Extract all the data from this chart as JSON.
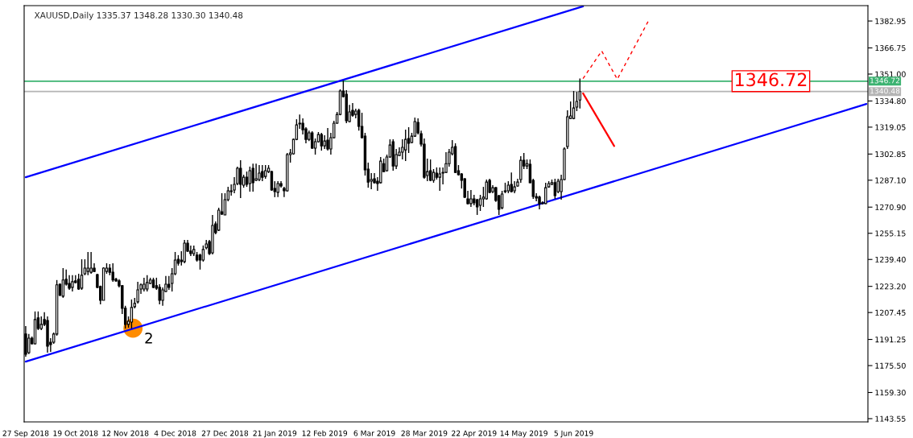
{
  "chart_data": {
    "type": "candlestick",
    "title": "XAUUSD,Daily 1335.37 1348.28 1330.30 1340.48",
    "categories": [
      "27 Sep 2018",
      null,
      null,
      null,
      null,
      null,
      null,
      null,
      null,
      null,
      null,
      null,
      null,
      null,
      null,
      null,
      "19 Oct 2018",
      null,
      null,
      null,
      null,
      null,
      null,
      null,
      null,
      null,
      null,
      null,
      null,
      null,
      null,
      null,
      "12 Nov 2018",
      null,
      null,
      null,
      null,
      null,
      null,
      null,
      null,
      null,
      null,
      null,
      null,
      null,
      null,
      null,
      "4 Dec 2018",
      null,
      null,
      null,
      null,
      null,
      null,
      null,
      null,
      null,
      null,
      null,
      null,
      null,
      null,
      null,
      "27 Dec 2018",
      null,
      null,
      null,
      null,
      null,
      null,
      null,
      null,
      null,
      null,
      null,
      null,
      null,
      null,
      null,
      "21 Jan 2019",
      null,
      null,
      null,
      null,
      null,
      null,
      null,
      null,
      null,
      null,
      null,
      null,
      null,
      null,
      null,
      "12 Feb 2019",
      null,
      null,
      null,
      null,
      null,
      null,
      null,
      null,
      null,
      null,
      null,
      null,
      null,
      null,
      null,
      "6 Mar 2019",
      null,
      null,
      null,
      null,
      null,
      null,
      null,
      null,
      null,
      null,
      null,
      null,
      null,
      null,
      null,
      "28 Mar 2019",
      null,
      null,
      null,
      null,
      null,
      null,
      null,
      null,
      null,
      null,
      null,
      null,
      null,
      null,
      null,
      "22 Apr 2019",
      null,
      null,
      null,
      null,
      null,
      null,
      null,
      null,
      null,
      null,
      null,
      null,
      null,
      null,
      null,
      "14 May 2019",
      null,
      null,
      null,
      null,
      null,
      null,
      null,
      null,
      null,
      null,
      null,
      null,
      null,
      null,
      null,
      "5 Jun 2019",
      null,
      null,
      null,
      null,
      null,
      null,
      null,
      null,
      null,
      null,
      null,
      null,
      null,
      null,
      null,
      null,
      null,
      null,
      null,
      null,
      null,
      null,
      null,
      null,
      null,
      null,
      null,
      null,
      null,
      null,
      null,
      null,
      null,
      null,
      null,
      null,
      null,
      null,
      null,
      null,
      null,
      null,
      null,
      null,
      null,
      null,
      null,
      null,
      null,
      null,
      null,
      null,
      null,
      null,
      null,
      null,
      null,
      null,
      null,
      null,
      null,
      null,
      null,
      null,
      null,
      null,
      null,
      null,
      null,
      null,
      null,
      null,
      null,
      null,
      null,
      null,
      null,
      null,
      null,
      null,
      null,
      null,
      null,
      null,
      null,
      null,
      null,
      null,
      null,
      null,
      null,
      null,
      null,
      null
    ],
    "ohlc": [
      [
        1194.5,
        1199.3,
        1180.9,
        1182.4
      ],
      [
        1183.3,
        1194.5,
        1182.4,
        1192.0
      ],
      [
        1192.0,
        1193.0,
        1188.2,
        1188.6
      ],
      [
        1188.6,
        1208.1,
        1188.2,
        1203.2
      ],
      [
        1204.2,
        1208.1,
        1196.9,
        1197.8
      ],
      [
        1197.8,
        1205.1,
        1196.9,
        1200.3
      ],
      [
        1203.2,
        1207.6,
        1199.3,
        1200.3
      ],
      [
        1202.7,
        1205.1,
        1183.3,
        1187.2
      ],
      [
        1189.6,
        1192.0,
        1183.8,
        1188.2
      ],
      [
        1189.6,
        1195.4,
        1188.6,
        1194.5
      ],
      [
        1194.5,
        1227.0,
        1193.5,
        1224.1
      ],
      [
        1224.5,
        1225.0,
        1217.3,
        1217.8
      ],
      [
        1217.3,
        1234.2,
        1216.3,
        1227.0
      ],
      [
        1227.5,
        1233.3,
        1223.6,
        1224.5
      ],
      [
        1225.0,
        1229.9,
        1221.1,
        1222.1
      ],
      [
        1222.6,
        1229.9,
        1220.1,
        1226.0
      ],
      [
        1226.5,
        1229.9,
        1225.0,
        1225.5
      ],
      [
        1227.5,
        1230.8,
        1221.1,
        1221.6
      ],
      [
        1222.1,
        1239.5,
        1221.1,
        1229.9
      ],
      [
        1230.8,
        1239.5,
        1229.9,
        1234.2
      ],
      [
        1232.2,
        1243.9,
        1229.9,
        1234.2
      ],
      [
        1231.7,
        1243.9,
        1230.8,
        1234.2
      ],
      [
        1234.2,
        1237.1,
        1231.7,
        1232.2
      ],
      [
        1230.3,
        1230.8,
        1222.1,
        1222.6
      ],
      [
        1223.1,
        1223.6,
        1212.4,
        1214.8
      ],
      [
        1214.8,
        1234.7,
        1214.8,
        1234.2
      ],
      [
        1232.2,
        1237.1,
        1230.8,
        1234.2
      ],
      [
        1234.2,
        1236.6,
        1229.9,
        1231.7
      ],
      [
        1231.7,
        1237.1,
        1226.0,
        1227.0
      ],
      [
        1227.5,
        1228.4,
        1226.0,
        1226.5
      ],
      [
        1226.5,
        1227.5,
        1222.6,
        1223.6
      ],
      [
        1223.6,
        1224.0,
        1206.6,
        1210.0
      ],
      [
        1210.0,
        1211.5,
        1197.8,
        1200.3
      ],
      [
        1200.3,
        1205.1,
        1198.3,
        1202.2
      ],
      [
        1201.7,
        1215.3,
        1197.8,
        1210.5
      ],
      [
        1211.0,
        1216.3,
        1210.0,
        1212.9
      ],
      [
        1213.9,
        1226.0,
        1212.9,
        1221.1
      ],
      [
        1221.6,
        1225.0,
        1218.7,
        1224.1
      ],
      [
        1221.6,
        1228.4,
        1220.1,
        1224.5
      ],
      [
        1221.6,
        1229.9,
        1220.1,
        1225.5
      ],
      [
        1225.0,
        1228.4,
        1224.5,
        1227.0
      ],
      [
        1227.0,
        1228.4,
        1222.1,
        1222.6
      ],
      [
        1223.6,
        1228.4,
        1221.1,
        1222.1
      ],
      [
        1222.6,
        1224.5,
        1212.4,
        1214.8
      ],
      [
        1214.8,
        1222.6,
        1211.5,
        1221.1
      ],
      [
        1220.1,
        1229.4,
        1219.6,
        1224.5
      ],
      [
        1224.5,
        1229.4,
        1221.1,
        1222.6
      ],
      [
        1225.0,
        1234.2,
        1220.1,
        1230.8
      ],
      [
        1230.8,
        1243.9,
        1229.9,
        1239.0
      ],
      [
        1239.5,
        1242.0,
        1235.7,
        1237.1
      ],
      [
        1239.0,
        1244.4,
        1235.7,
        1238.1
      ],
      [
        1238.1,
        1251.1,
        1237.1,
        1249.2
      ],
      [
        1249.2,
        1251.1,
        1243.9,
        1244.4
      ],
      [
        1244.4,
        1247.8,
        1241.5,
        1242.9
      ],
      [
        1242.9,
        1247.8,
        1241.5,
        1245.4
      ],
      [
        1242.0,
        1243.9,
        1238.1,
        1239.0
      ],
      [
        1242.0,
        1242.9,
        1233.3,
        1239.0
      ],
      [
        1239.0,
        1247.8,
        1238.1,
        1245.4
      ],
      [
        1246.4,
        1251.1,
        1245.4,
        1248.7
      ],
      [
        1250.2,
        1251.1,
        1242.0,
        1242.9
      ],
      [
        1243.4,
        1266.2,
        1242.4,
        1259.9
      ],
      [
        1260.8,
        1262.3,
        1254.5,
        1255.5
      ],
      [
        1257.0,
        1270.5,
        1256.5,
        1269.1
      ],
      [
        1268.1,
        1279.3,
        1266.2,
        1266.7
      ],
      [
        1266.2,
        1279.3,
        1266.2,
        1275.4
      ],
      [
        1275.4,
        1283.1,
        1274.4,
        1280.7
      ],
      [
        1280.2,
        1284.6,
        1277.8,
        1280.7
      ],
      [
        1281.2,
        1288.9,
        1279.3,
        1284.6
      ],
      [
        1285.1,
        1295.3,
        1284.1,
        1294.3
      ],
      [
        1294.3,
        1299.1,
        1276.4,
        1284.6
      ],
      [
        1284.1,
        1290.4,
        1282.6,
        1288.9
      ],
      [
        1288.9,
        1292.3,
        1283.1,
        1284.6
      ],
      [
        1285.1,
        1295.3,
        1280.2,
        1292.8
      ],
      [
        1294.3,
        1297.1,
        1280.2,
        1285.6
      ],
      [
        1287.0,
        1297.1,
        1286.5,
        1288.0
      ],
      [
        1287.5,
        1296.2,
        1286.5,
        1291.4
      ],
      [
        1292.3,
        1296.2,
        1286.5,
        1288.9
      ],
      [
        1289.4,
        1296.2,
        1288.0,
        1292.8
      ],
      [
        1292.3,
        1296.2,
        1291.4,
        1294.3
      ],
      [
        1292.3,
        1292.8,
        1280.7,
        1281.2
      ],
      [
        1282.1,
        1286.5,
        1276.9,
        1280.2
      ],
      [
        1279.8,
        1286.5,
        1276.9,
        1285.1
      ],
      [
        1285.1,
        1286.5,
        1282.6,
        1283.6
      ],
      [
        1282.1,
        1283.1,
        1276.9,
        1280.7
      ],
      [
        1280.7,
        1303.5,
        1280.2,
        1302.5
      ],
      [
        1302.5,
        1305.9,
        1297.7,
        1303.5
      ],
      [
        1303.0,
        1312.2,
        1302.5,
        1311.7
      ],
      [
        1311.7,
        1323.8,
        1311.2,
        1320.4
      ],
      [
        1321.0,
        1326.7,
        1318.0,
        1321.4
      ],
      [
        1321.4,
        1324.3,
        1314.6,
        1317.5
      ],
      [
        1318.0,
        1319.0,
        1309.3,
        1311.7
      ],
      [
        1311.7,
        1317.0,
        1310.7,
        1315.6
      ],
      [
        1315.6,
        1316.6,
        1305.9,
        1306.4
      ],
      [
        1306.4,
        1312.2,
        1302.5,
        1310.3
      ],
      [
        1310.3,
        1316.1,
        1309.8,
        1314.6
      ],
      [
        1314.6,
        1315.6,
        1304.9,
        1307.8
      ],
      [
        1307.8,
        1314.1,
        1305.9,
        1310.7
      ],
      [
        1311.2,
        1318.5,
        1304.9,
        1305.9
      ],
      [
        1305.9,
        1315.6,
        1302.5,
        1312.7
      ],
      [
        1312.7,
        1322.9,
        1312.2,
        1321.4
      ],
      [
        1321.4,
        1328.2,
        1321.0,
        1326.7
      ],
      [
        1326.7,
        1341.8,
        1326.2,
        1340.8
      ],
      [
        1340.8,
        1347.1,
        1336.9,
        1337.4
      ],
      [
        1338.9,
        1341.3,
        1321.4,
        1322.9
      ],
      [
        1322.4,
        1332.5,
        1321.9,
        1328.2
      ],
      [
        1329.2,
        1333.5,
        1325.3,
        1326.2
      ],
      [
        1326.7,
        1330.1,
        1324.3,
        1328.7
      ],
      [
        1329.2,
        1330.1,
        1317.0,
        1319.5
      ],
      [
        1319.5,
        1327.7,
        1312.2,
        1312.7
      ],
      [
        1313.6,
        1315.6,
        1289.9,
        1293.3
      ],
      [
        1293.8,
        1297.7,
        1282.6,
        1286.0
      ],
      [
        1286.5,
        1291.4,
        1281.7,
        1287.5
      ],
      [
        1288.0,
        1291.4,
        1285.1,
        1285.6
      ],
      [
        1286.5,
        1288.9,
        1280.7,
        1285.1
      ],
      [
        1285.6,
        1301.1,
        1285.1,
        1298.6
      ],
      [
        1297.1,
        1300.1,
        1292.0,
        1292.3
      ],
      [
        1292.8,
        1302.5,
        1292.3,
        1301.1
      ],
      [
        1301.1,
        1311.7,
        1300.6,
        1308.3
      ],
      [
        1310.3,
        1311.7,
        1292.8,
        1295.7
      ],
      [
        1295.7,
        1305.9,
        1293.8,
        1302.5
      ],
      [
        1302.0,
        1306.9,
        1301.8,
        1304.0
      ],
      [
        1304.0,
        1311.7,
        1299.6,
        1306.9
      ],
      [
        1305.4,
        1317.5,
        1298.6,
        1311.7
      ],
      [
        1312.2,
        1319.0,
        1303.5,
        1309.3
      ],
      [
        1309.8,
        1315.6,
        1309.3,
        1313.6
      ],
      [
        1313.6,
        1324.8,
        1313.2,
        1322.4
      ],
      [
        1321.9,
        1324.3,
        1314.6,
        1315.6
      ],
      [
        1315.1,
        1317.0,
        1307.4,
        1308.8
      ],
      [
        1308.8,
        1312.2,
        1288.0,
        1288.9
      ],
      [
        1289.9,
        1300.1,
        1286.5,
        1292.3
      ],
      [
        1292.8,
        1299.6,
        1286.5,
        1287.0
      ],
      [
        1287.0,
        1293.8,
        1285.6,
        1291.8
      ],
      [
        1291.4,
        1294.8,
        1287.5,
        1288.9
      ],
      [
        1288.9,
        1294.8,
        1280.7,
        1290.9
      ],
      [
        1291.4,
        1294.8,
        1284.6,
        1291.8
      ],
      [
        1291.8,
        1304.0,
        1291.4,
        1297.1
      ],
      [
        1297.1,
        1305.9,
        1295.3,
        1304.0
      ],
      [
        1303.0,
        1311.2,
        1302.0,
        1306.9
      ],
      [
        1307.4,
        1309.3,
        1291.4,
        1291.8
      ],
      [
        1292.8,
        1296.2,
        1289.9,
        1290.4
      ],
      [
        1290.9,
        1291.4,
        1282.1,
        1287.0
      ],
      [
        1288.0,
        1288.3,
        1276.4,
        1276.9
      ],
      [
        1275.9,
        1280.7,
        1272.5,
        1273.0
      ],
      [
        1273.0,
        1281.2,
        1271.0,
        1275.9
      ],
      [
        1275.9,
        1278.3,
        1272.0,
        1273.5
      ],
      [
        1275.4,
        1275.9,
        1266.2,
        1271.0
      ],
      [
        1272.0,
        1278.3,
        1268.6,
        1275.9
      ],
      [
        1275.9,
        1283.1,
        1271.0,
        1276.9
      ],
      [
        1275.9,
        1287.5,
        1275.4,
        1286.0
      ],
      [
        1287.0,
        1288.0,
        1279.3,
        1279.8
      ],
      [
        1280.2,
        1284.1,
        1279.3,
        1282.6
      ],
      [
        1282.6,
        1283.1,
        1274.0,
        1274.9
      ],
      [
        1277.8,
        1278.3,
        1266.2,
        1269.6
      ],
      [
        1270.5,
        1280.7,
        1269.6,
        1278.8
      ],
      [
        1280.2,
        1285.6,
        1279.3,
        1280.7
      ],
      [
        1280.7,
        1286.5,
        1279.3,
        1284.1
      ],
      [
        1284.6,
        1291.8,
        1279.8,
        1280.2
      ],
      [
        1280.7,
        1286.5,
        1279.3,
        1283.1
      ],
      [
        1283.6,
        1288.0,
        1283.1,
        1286.0
      ],
      [
        1287.5,
        1301.6,
        1285.6,
        1299.1
      ],
      [
        1299.1,
        1303.5,
        1293.8,
        1295.7
      ],
      [
        1295.7,
        1299.6,
        1293.8,
        1297.1
      ],
      [
        1296.7,
        1299.6,
        1285.3,
        1285.6
      ],
      [
        1287.0,
        1288.0,
        1275.9,
        1277.3
      ],
      [
        1277.3,
        1279.3,
        1274.4,
        1276.4
      ],
      [
        1276.9,
        1277.8,
        1269.6,
        1273.0
      ],
      [
        1273.0,
        1274.4,
        1272.5,
        1273.5
      ],
      [
        1273.0,
        1285.6,
        1272.7,
        1282.6
      ],
      [
        1283.1,
        1286.5,
        1282.6,
        1285.1
      ],
      [
        1284.6,
        1287.5,
        1284.1,
        1285.6
      ],
      [
        1285.6,
        1288.0,
        1275.9,
        1277.8
      ],
      [
        1280.2,
        1288.0,
        1279.3,
        1286.5
      ],
      [
        1280.2,
        1290.4,
        1275.4,
        1287.5
      ],
      [
        1287.5,
        1306.9,
        1287.0,
        1305.9
      ],
      [
        1307.4,
        1329.2,
        1305.9,
        1325.3
      ],
      [
        1324.3,
        1334.5,
        1324.0,
        1325.8
      ],
      [
        1324.3,
        1340.8,
        1323.8,
        1330.6
      ],
      [
        1331.1,
        1340.3,
        1328.7,
        1334.5
      ],
      [
        1335.37,
        1348.28,
        1330.3,
        1340.48
      ],
      null,
      null,
      null,
      null,
      null,
      null,
      null,
      null,
      null,
      null,
      null,
      null,
      null,
      null,
      null,
      null,
      null,
      null,
      null,
      null,
      null,
      null,
      null,
      null,
      null,
      null,
      null,
      null,
      null,
      null,
      null,
      null,
      null,
      null,
      null,
      null,
      null,
      null,
      null,
      null,
      null,
      null,
      null,
      null,
      null,
      null,
      null,
      null,
      null,
      null,
      null,
      null,
      null,
      null,
      null,
      null,
      null,
      null,
      null,
      null,
      null,
      null,
      null,
      null,
      null,
      null,
      null,
      null,
      null,
      null,
      null,
      null,
      null,
      null,
      null,
      null,
      null,
      null,
      null,
      null,
      null,
      null,
      null,
      null,
      null,
      null,
      null,
      null,
      null,
      null,
      null,
      null
    ],
    "series": [
      {
        "type": "line",
        "values": [
          1288.9,
          null,
          null,
          null,
          null,
          null,
          null,
          null,
          null,
          null,
          null,
          null,
          null,
          null,
          null,
          null,
          null,
          null,
          null,
          null,
          null,
          null,
          null,
          null,
          null,
          null,
          null,
          null,
          null,
          null,
          null,
          null,
          null,
          null,
          null,
          null,
          null,
          null,
          null,
          null,
          null,
          null,
          null,
          null,
          null,
          null,
          null,
          null,
          null,
          null,
          null,
          null,
          null,
          null,
          null,
          null,
          null,
          null,
          null,
          null,
          null,
          null,
          null,
          null,
          null,
          null,
          null,
          null,
          null,
          null,
          null,
          null,
          null,
          null,
          null,
          null,
          null,
          null,
          null,
          null,
          null,
          null,
          null,
          null,
          null,
          null,
          null,
          null,
          null,
          null,
          null,
          null,
          null,
          null,
          null,
          null,
          null,
          null,
          null,
          null,
          null,
          null,
          null,
          null,
          null,
          null,
          null,
          null,
          null,
          null,
          null,
          null,
          null,
          null,
          null,
          null,
          null,
          null,
          null,
          null,
          null,
          null,
          null,
          null,
          null,
          null,
          null,
          null,
          null,
          null,
          null,
          null,
          null,
          null,
          null,
          null,
          null,
          null,
          null,
          null,
          null,
          null,
          null,
          null,
          null,
          null,
          null,
          null,
          null,
          null,
          null,
          null,
          null,
          null,
          null,
          null,
          null,
          null,
          null,
          null,
          null,
          null,
          null,
          null,
          null,
          null,
          null,
          null,
          null,
          null,
          null,
          null,
          null,
          null,
          null,
          null,
          null,
          null,
          null,
          1391.8,
          null,
          null,
          null,
          null,
          null,
          null,
          null,
          null,
          null,
          null,
          null,
          null,
          null,
          null,
          null,
          null,
          null,
          null,
          null,
          null,
          null,
          null,
          null,
          null,
          null,
          null,
          null,
          null,
          null,
          null,
          null,
          null,
          null,
          null,
          null,
          null,
          null,
          null,
          null,
          null,
          null,
          null,
          null,
          null,
          null,
          null,
          null,
          null,
          null,
          null,
          null,
          null,
          null,
          null,
          null,
          null,
          null,
          null,
          null,
          null,
          null,
          null,
          null,
          null,
          null,
          null,
          null,
          null,
          null,
          null,
          null,
          null,
          null,
          null,
          null,
          null,
          null,
          null,
          null,
          null,
          null,
          null,
          null,
          null,
          null,
          null,
          null,
          null,
          null,
          null,
          null
        ],
        "color": "#0000ff",
        "line_style": "solid"
      },
      {
        "type": "line",
        "values": [
          1177.9,
          null,
          null,
          null,
          null,
          null,
          null,
          null,
          null,
          null,
          null,
          null,
          null,
          null,
          null,
          null,
          null,
          null,
          null,
          null,
          null,
          null,
          null,
          null,
          null,
          null,
          null,
          null,
          null,
          null,
          null,
          null,
          null,
          null,
          null,
          null,
          null,
          null,
          null,
          null,
          null,
          null,
          null,
          null,
          null,
          null,
          null,
          null,
          null,
          null,
          null,
          null,
          null,
          null,
          null,
          null,
          null,
          null,
          null,
          null,
          null,
          null,
          null,
          null,
          null,
          null,
          null,
          null,
          null,
          null,
          null,
          null,
          null,
          null,
          null,
          null,
          null,
          null,
          null,
          null,
          null,
          null,
          null,
          null,
          null,
          null,
          null,
          null,
          null,
          null,
          null,
          null,
          null,
          null,
          null,
          null,
          null,
          null,
          null,
          null,
          null,
          null,
          null,
          null,
          null,
          null,
          null,
          null,
          null,
          null,
          null,
          null,
          null,
          null,
          null,
          null,
          null,
          null,
          null,
          null,
          null,
          null,
          null,
          null,
          null,
          null,
          null,
          null,
          null,
          null,
          null,
          null,
          null,
          null,
          null,
          null,
          null,
          null,
          null,
          null,
          null,
          null,
          null,
          null,
          null,
          null,
          null,
          null,
          null,
          null,
          null,
          null,
          null,
          null,
          null,
          null,
          null,
          null,
          null,
          null,
          null,
          null,
          null,
          null,
          null,
          null,
          null,
          null,
          null,
          null,
          null,
          null,
          null,
          null,
          null,
          null,
          null,
          null,
          null,
          null,
          null,
          null,
          null,
          null,
          null,
          null,
          null,
          null,
          null,
          null,
          null,
          null,
          null,
          null,
          null,
          null,
          null,
          null,
          null,
          null,
          null,
          null,
          null,
          null,
          null,
          null,
          null,
          null,
          null,
          null,
          null,
          null,
          null,
          null,
          null,
          null,
          null,
          null,
          null,
          null,
          null,
          null,
          null,
          null,
          null,
          null,
          null,
          null,
          null,
          null,
          null,
          null,
          null,
          null,
          null,
          null,
          null,
          null,
          null,
          null,
          null,
          null,
          null,
          null,
          null,
          null,
          null,
          null,
          null,
          null,
          null,
          null,
          null,
          null,
          null,
          null,
          null,
          null,
          null,
          null,
          null,
          null,
          null,
          null,
          null,
          null,
          null,
          null,
          null,
          null,
          1333.0
        ],
        "color": "#0000ff",
        "line_style": "solid"
      },
      {
        "type": "line",
        "values": [
          null,
          null,
          null,
          null,
          null,
          null,
          null,
          null,
          null,
          null,
          null,
          null,
          null,
          null,
          null,
          null,
          null,
          null,
          null,
          null,
          null,
          null,
          null,
          null,
          null,
          null,
          null,
          null,
          null,
          null,
          null,
          null,
          null,
          null,
          null,
          null,
          null,
          null,
          null,
          null,
          null,
          null,
          null,
          null,
          null,
          null,
          null,
          null,
          null,
          null,
          null,
          null,
          null,
          null,
          null,
          null,
          null,
          null,
          null,
          null,
          null,
          null,
          null,
          null,
          null,
          null,
          null,
          null,
          null,
          null,
          null,
          null,
          null,
          null,
          null,
          null,
          null,
          null,
          null,
          null,
          null,
          null,
          null,
          null,
          null,
          null,
          null,
          null,
          null,
          null,
          null,
          null,
          null,
          null,
          null,
          null,
          null,
          null,
          null,
          null,
          null,
          null,
          null,
          null,
          null,
          null,
          null,
          null,
          null,
          null,
          null,
          null,
          null,
          null,
          null,
          null,
          null,
          null,
          null,
          null,
          null,
          null,
          null,
          null,
          null,
          null,
          null,
          null,
          null,
          null,
          null,
          null,
          null,
          null,
          null,
          null,
          null,
          null,
          null,
          null,
          null,
          null,
          null,
          null,
          null,
          null,
          null,
          null,
          null,
          null,
          null,
          null,
          null,
          null,
          null,
          null,
          null,
          null,
          null,
          null,
          null,
          null,
          null,
          null,
          null,
          null,
          null,
          null,
          null,
          null,
          null,
          null,
          null,
          null,
          null,
          null,
          null,
          null,
          null,
          1339.4,
          null,
          null,
          null,
          null,
          null,
          null,
          null,
          null,
          null,
          1307.7,
          null,
          null,
          null,
          null,
          null,
          null,
          null,
          null,
          null,
          null,
          null,
          null,
          null,
          null,
          null,
          null,
          null,
          null,
          null,
          null,
          null,
          null,
          null,
          null,
          null,
          null,
          null,
          null,
          null,
          null,
          null,
          null,
          null,
          null,
          null,
          null,
          null,
          null,
          null,
          null,
          null,
          null,
          null,
          null,
          null,
          null,
          null,
          null,
          null,
          null,
          null,
          null,
          null,
          null,
          null,
          null,
          null,
          null,
          null,
          null,
          null,
          null,
          null,
          null,
          null,
          null,
          null,
          null,
          null,
          null,
          null,
          null,
          null,
          null,
          null,
          null,
          null,
          null,
          null,
          null,
          null
        ],
        "color": "#ff0000",
        "line_style": "solid"
      },
      {
        "type": "line",
        "values": [
          null,
          null,
          null,
          null,
          null,
          null,
          null,
          null,
          null,
          null,
          null,
          null,
          null,
          null,
          null,
          null,
          null,
          null,
          null,
          null,
          null,
          null,
          null,
          null,
          null,
          null,
          null,
          null,
          null,
          null,
          null,
          null,
          null,
          null,
          null,
          null,
          null,
          null,
          null,
          null,
          null,
          null,
          null,
          null,
          null,
          null,
          null,
          null,
          null,
          null,
          null,
          null,
          null,
          null,
          null,
          null,
          null,
          null,
          null,
          null,
          null,
          null,
          null,
          null,
          null,
          null,
          null,
          null,
          null,
          null,
          null,
          null,
          null,
          null,
          null,
          null,
          null,
          null,
          null,
          null,
          null,
          null,
          null,
          null,
          null,
          null,
          null,
          null,
          null,
          null,
          null,
          null,
          null,
          null,
          null,
          null,
          null,
          null,
          null,
          null,
          null,
          null,
          null,
          null,
          null,
          null,
          null,
          null,
          null,
          null,
          null,
          null,
          null,
          null,
          null,
          null,
          null,
          null,
          null,
          null,
          null,
          null,
          null,
          null,
          null,
          null,
          null,
          null,
          null,
          null,
          null,
          null,
          null,
          null,
          null,
          null,
          null,
          null,
          null,
          null,
          null,
          null,
          null,
          null,
          null,
          null,
          null,
          null,
          null,
          null,
          null,
          null,
          null,
          null,
          null,
          null,
          null,
          null,
          null,
          null,
          null,
          null,
          null,
          null,
          null,
          null,
          null,
          null,
          null,
          null,
          null,
          null,
          null,
          null,
          null,
          null,
          null,
          null,
          null,
          1348.3,
          null,
          null,
          null,
          null,
          null,
          1364.9,
          null,
          null,
          null,
          null,
          1347.9,
          null,
          null,
          null,
          null,
          null,
          null,
          null,
          null,
          null,
          1383,
          null,
          null,
          null,
          null,
          null,
          null,
          null,
          null,
          null,
          null,
          null,
          null,
          null,
          null,
          null,
          null,
          null,
          null,
          null,
          null,
          null,
          null,
          null,
          null,
          null,
          null,
          null,
          null,
          null,
          null,
          null,
          null,
          null,
          null,
          null,
          null,
          null,
          null,
          null,
          null,
          null,
          null,
          null,
          null,
          null,
          null,
          null,
          null,
          null,
          null,
          null,
          null,
          null,
          null,
          null,
          null,
          null,
          null,
          null,
          null,
          null,
          null,
          null,
          null,
          null,
          null,
          null,
          null,
          null,
          null
        ],
        "color": "#ff0000",
        "line_style": "dashed"
      }
    ],
    "ylim": [
      1141.6,
      1392.2
    ],
    "yticks": [
      1143.55,
      {
        "value": 1159.3,
        "label": "1159.30"
      },
      {
        "value": 1175.5,
        "label": "1175.50"
      },
      1191.25,
      1207.45,
      {
        "value": 1223.2,
        "label": "1223.20"
      },
      {
        "value": 1239.4,
        "label": "1239.40"
      },
      1255.15,
      {
        "value": 1270.9,
        "label": "1270.90"
      },
      {
        "value": 1287.1,
        "label": "1287.10"
      },
      1302.85,
      1319.05,
      {
        "value": 1334.8,
        "label": "1334.80"
      },
      {
        "value": 1351,
        "label": "1351.00"
      },
      1366.75,
      1382.95
    ],
    "ref_lines": [
      {
        "axis": "y",
        "value": 1346.72,
        "label": "1346.72",
        "color": "#3cb371"
      },
      {
        "axis": "y",
        "value": 1340.48,
        "label": "1340.48",
        "color": "#b4b4b4"
      }
    ],
    "annotations": [
      {
        "text": "1346.72",
        "y": 1346.72
      },
      "2"
    ],
    "grid": false,
    "legend": false
  }
}
